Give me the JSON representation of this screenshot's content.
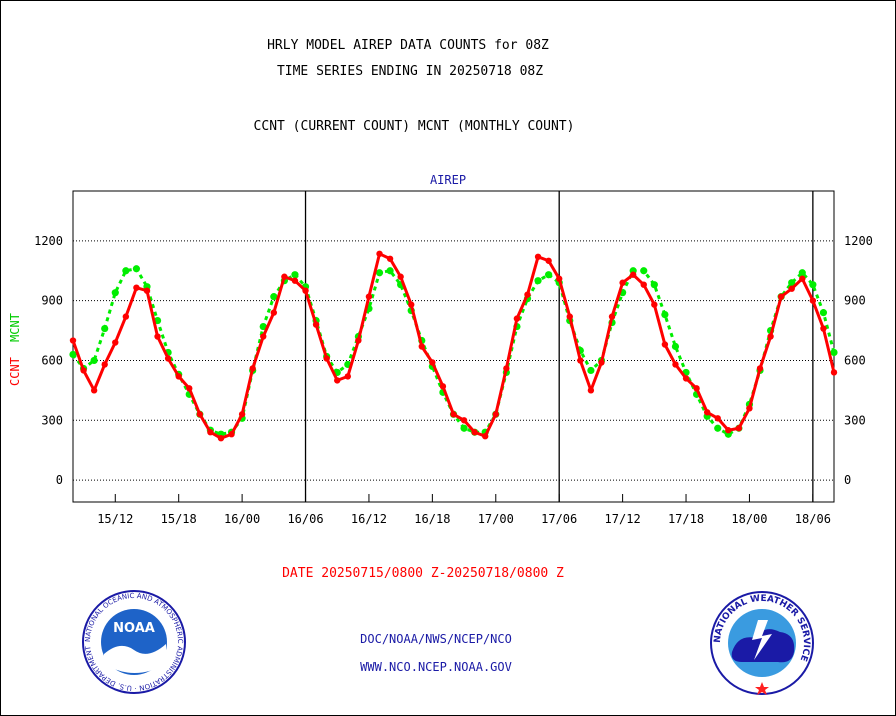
{
  "header": {
    "title_line1": "HRLY MODEL AIREP DATA COUNTS for 08Z",
    "title_line2": "TIME SERIES ENDING IN 20250718 08Z",
    "title_line3": "CCNT (CURRENT COUNT) MCNT (MONTHLY COUNT)"
  },
  "footer": {
    "date_range": "DATE 20250715/0800 Z-20250718/0800 Z",
    "org_path": "DOC/NOAA/NWS/NCEP/NCO",
    "website": "WWW.NCO.NCEP.NOAA.GOV"
  },
  "logos": {
    "noaa_text": "NOAA",
    "noaa_ring_text": "NATIONAL OCEANIC AND ATMOSPHERIC ADMINISTRATION · U.S. DEPARTMENT OF COMMERCE",
    "nws_ring_text": "NATIONAL WEATHER SERVICE"
  },
  "colors": {
    "ccnt": "#ff0000",
    "mcnt": "#00ee00",
    "label_blue": "#1a1aa6"
  },
  "chart_data": {
    "type": "line",
    "title": "AIREP",
    "ylabel_ccnt": "CCNT",
    "ylabel_mcnt": "MCNT",
    "ylim": [
      -110,
      1450
    ],
    "xlim": [
      0,
      72
    ],
    "yticks": [
      0,
      300,
      600,
      900,
      1200
    ],
    "xtick_positions": [
      4,
      10,
      16,
      22,
      28,
      34,
      40,
      46,
      52,
      58,
      64,
      70
    ],
    "xtick_labels": [
      "15/12",
      "15/18",
      "16/00",
      "16/06",
      "16/12",
      "16/18",
      "17/00",
      "17/06",
      "17/12",
      "17/18",
      "18/00",
      "18/06"
    ],
    "day_boundaries": [
      22,
      46,
      70
    ],
    "grid": true,
    "series": [
      {
        "name": "CCNT",
        "values": [
          700,
          550,
          450,
          580,
          690,
          820,
          965,
          950,
          720,
          610,
          520,
          460,
          330,
          240,
          210,
          230,
          330,
          560,
          720,
          840,
          1020,
          1000,
          950,
          780,
          610,
          500,
          520,
          700,
          920,
          1135,
          1110,
          1020,
          880,
          670,
          590,
          470,
          330,
          300,
          240,
          220,
          330,
          560,
          810,
          930,
          1120,
          1100,
          1010,
          820,
          600,
          450,
          590,
          820,
          990,
          1030,
          980,
          880,
          680,
          580,
          510,
          460,
          340,
          310,
          250,
          260,
          360,
          560,
          720,
          920,
          960,
          1010,
          900,
          760,
          540
        ]
      },
      {
        "name": "MCNT",
        "values": [
          630,
          560,
          600,
          760,
          940,
          1050,
          1060,
          970,
          800,
          640,
          530,
          430,
          330,
          250,
          230,
          240,
          310,
          550,
          770,
          920,
          1000,
          1030,
          970,
          800,
          620,
          540,
          580,
          720,
          860,
          1040,
          1050,
          980,
          850,
          700,
          570,
          440,
          330,
          260,
          240,
          240,
          330,
          540,
          770,
          910,
          1000,
          1030,
          990,
          800,
          650,
          550,
          600,
          790,
          940,
          1050,
          1050,
          980,
          830,
          670,
          540,
          430,
          320,
          260,
          230,
          260,
          380,
          550,
          750,
          920,
          990,
          1040,
          980,
          840,
          640
        ]
      }
    ]
  }
}
